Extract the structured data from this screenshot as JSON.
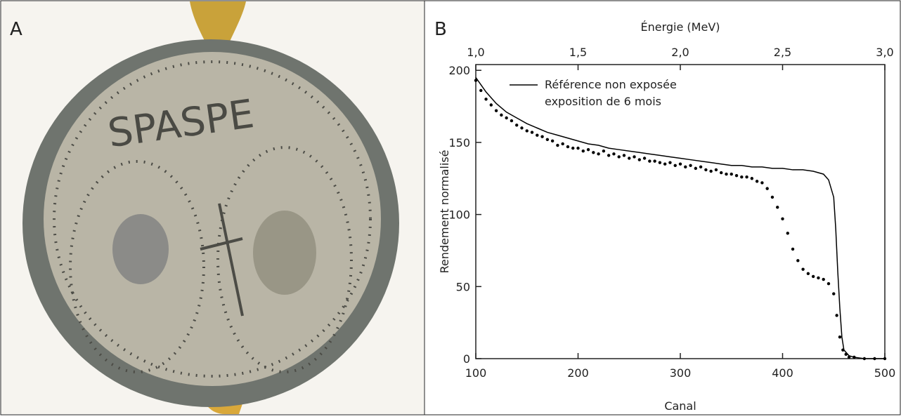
{
  "panels": {
    "a_label": "A",
    "b_label": "B",
    "seal_inscription": "SPASPE"
  },
  "chart_data": {
    "type": "line",
    "xlabel": "Canal",
    "ylabel": "Rendement normalisé",
    "x2label": "Énergie (MeV)",
    "xlim": [
      100,
      500
    ],
    "xticks": [
      100,
      200,
      300,
      400,
      500
    ],
    "ylim": [
      0,
      204
    ],
    "yticks": [
      0,
      50,
      100,
      150,
      200
    ],
    "x2lim": [
      1.0,
      3.0
    ],
    "x2ticks": [
      {
        "value": 1.0,
        "label": "1,0"
      },
      {
        "value": 1.5,
        "label": "1,5"
      },
      {
        "value": 2.0,
        "label": "2,0"
      },
      {
        "value": 2.5,
        "label": "2,5"
      },
      {
        "value": 3.0,
        "label": "3,0"
      }
    ],
    "legend": "upper left",
    "series": [
      {
        "name": "Référence non exposée",
        "color": "#000000",
        "style": "line",
        "x": [
          100,
          110,
          120,
          130,
          140,
          150,
          160,
          170,
          180,
          190,
          200,
          210,
          220,
          230,
          240,
          250,
          260,
          270,
          280,
          290,
          300,
          310,
          320,
          330,
          340,
          350,
          360,
          370,
          380,
          390,
          400,
          410,
          420,
          430,
          440,
          445,
          450,
          452,
          454,
          456,
          458,
          460,
          465,
          470,
          480,
          490,
          500
        ],
        "values": [
          195,
          185,
          177,
          171,
          167,
          163,
          160,
          157,
          155,
          153,
          151,
          149,
          148,
          146,
          145,
          144,
          143,
          142,
          141,
          140,
          139,
          138,
          137,
          136,
          135,
          134,
          134,
          133,
          133,
          132,
          132,
          131,
          131,
          130,
          128,
          124,
          112,
          90,
          60,
          35,
          15,
          6,
          2,
          1,
          0,
          0,
          0
        ]
      },
      {
        "name": "exposition de 6 mois",
        "color": "#000000",
        "style": "scatter",
        "x": [
          100,
          105,
          110,
          115,
          120,
          125,
          130,
          135,
          140,
          145,
          150,
          155,
          160,
          165,
          170,
          175,
          180,
          185,
          190,
          195,
          200,
          205,
          210,
          215,
          220,
          225,
          230,
          235,
          240,
          245,
          250,
          255,
          260,
          265,
          270,
          275,
          280,
          285,
          290,
          295,
          300,
          305,
          310,
          315,
          320,
          325,
          330,
          335,
          340,
          345,
          350,
          355,
          360,
          365,
          370,
          375,
          380,
          385,
          390,
          395,
          400,
          405,
          410,
          415,
          420,
          425,
          430,
          435,
          440,
          445,
          450,
          453,
          456,
          459,
          462,
          465,
          470,
          480,
          490,
          500
        ],
        "values": [
          193,
          186,
          180,
          176,
          172,
          169,
          167,
          165,
          162,
          160,
          158,
          157,
          155,
          154,
          152,
          151,
          148,
          149,
          147,
          146,
          146,
          144,
          145,
          143,
          142,
          144,
          141,
          142,
          140,
          141,
          139,
          140,
          138,
          139,
          137,
          137,
          136,
          135,
          136,
          134,
          135,
          133,
          134,
          132,
          133,
          131,
          130,
          131,
          129,
          128,
          128,
          127,
          126,
          126,
          125,
          123,
          122,
          118,
          112,
          105,
          97,
          87,
          76,
          68,
          62,
          59,
          57,
          56,
          55,
          52,
          45,
          30,
          15,
          6,
          3,
          1,
          1,
          0,
          0,
          0
        ]
      }
    ]
  }
}
